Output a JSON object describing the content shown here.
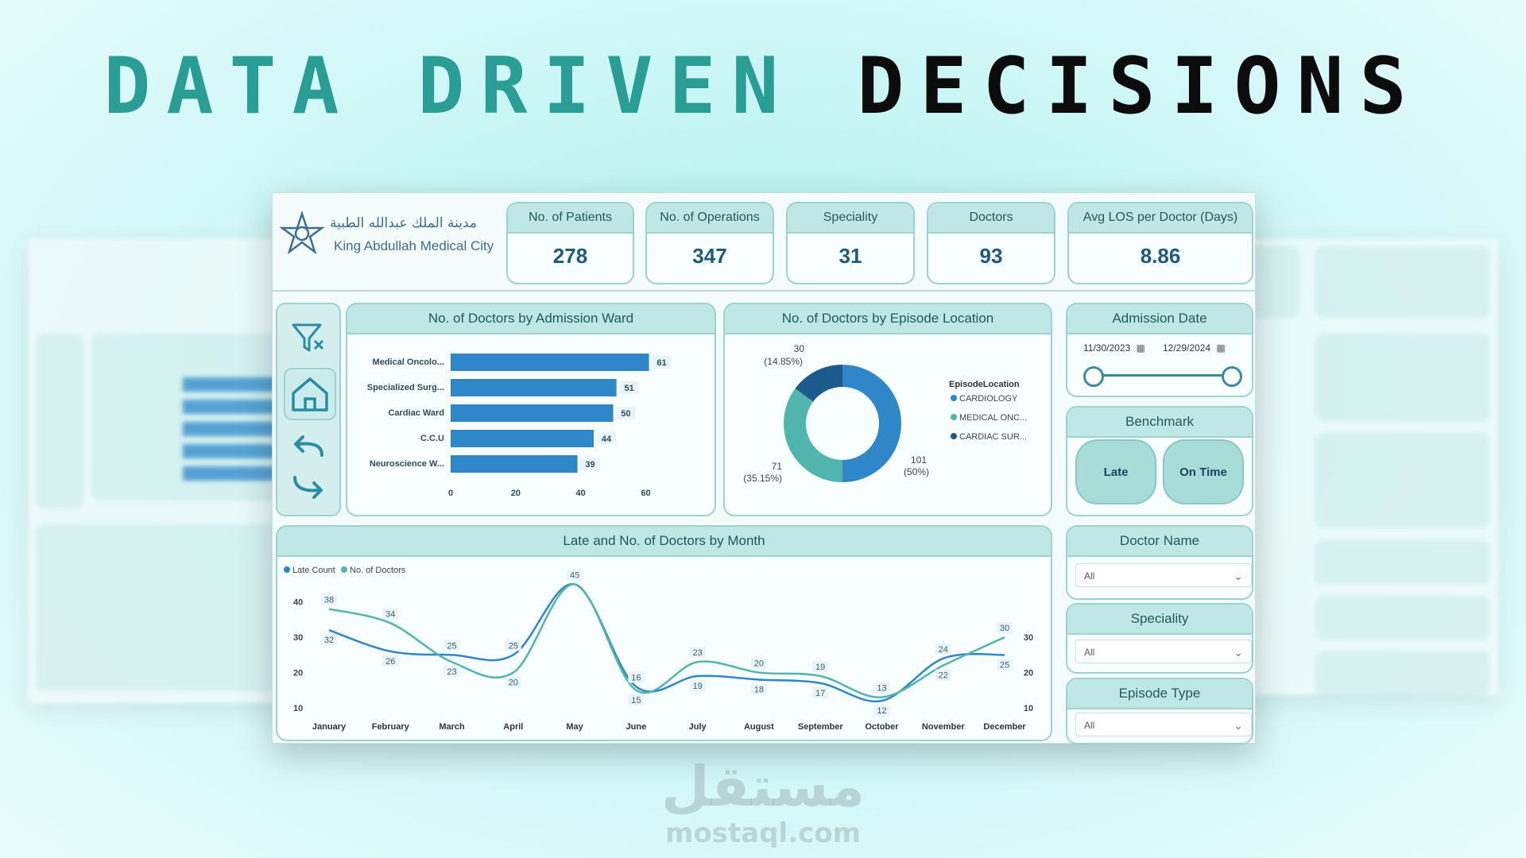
{
  "headline": {
    "part1": "DATA DRIVEN",
    "part2": "DECISIONS"
  },
  "logo": {
    "arabic": "مدينة الملك عبدالله الطبية",
    "english": "King Abdullah Medical City"
  },
  "kpis": [
    {
      "label": "No. of Patients",
      "value": "278"
    },
    {
      "label": "No. of Operations",
      "value": "347"
    },
    {
      "label": "Speciality",
      "value": "31"
    },
    {
      "label": "Doctors",
      "value": "93"
    },
    {
      "label": "Avg LOS per Doctor (Days)",
      "value": "8.86"
    }
  ],
  "nav": {
    "icons": [
      "filter-clear-icon",
      "home-icon",
      "undo-icon",
      "redo-icon"
    ]
  },
  "ward_chart_title": "No. of Doctors by Admission Ward",
  "location_chart_title": "No. of Doctors by Episode Location",
  "month_chart_title": "Late and No. of Doctors by Month",
  "admission_date": {
    "title": "Admission Date",
    "start": "11/30/2023",
    "end": "12/29/2024"
  },
  "benchmark": {
    "title": "Benchmark",
    "late": "Late",
    "on_time": "On Time"
  },
  "doctor_name": {
    "title": "Doctor Name",
    "value": "All"
  },
  "speciality_filter": {
    "title": "Speciality",
    "value": "All"
  },
  "episode_type": {
    "title": "Episode Type",
    "value": "All"
  },
  "watermark": {
    "arabic": "مستقل",
    "english": "mostaql.com"
  },
  "colors": {
    "accent": "#2a9d94",
    "bar": "#2f86c9",
    "header": "#bfe7e5",
    "border": "#9cd3d1"
  },
  "chart_data": [
    {
      "type": "bar",
      "orientation": "horizontal",
      "categories": [
        "Medical Oncolo...",
        "Specialized Surg...",
        "Cardiac Ward",
        "C.C.U",
        "Neuroscience W..."
      ],
      "values": [
        61,
        51,
        50,
        44,
        39
      ],
      "xticks": [
        "0",
        "20",
        "40",
        "60"
      ],
      "xlim": [
        0,
        66
      ]
    },
    {
      "type": "pie",
      "legend_title": "EpisodeLocation",
      "labels": [
        "CARDIOLOGY",
        "MEDICAL ONC...",
        "CARDIAC SUR..."
      ],
      "values": [
        101,
        71,
        30
      ],
      "percents": [
        "(50%)",
        "(35.15%)",
        "(14.85%)"
      ],
      "colors": [
        "#2f86c9",
        "#4fb5ad",
        "#1b5a8c"
      ]
    },
    {
      "type": "line",
      "categories": [
        "January",
        "February",
        "March",
        "April",
        "May",
        "June",
        "July",
        "August",
        "September",
        "October",
        "November",
        "December"
      ],
      "series": [
        {
          "name": "Late Count",
          "values": [
            32,
            26,
            25,
            25,
            45,
            16,
            19,
            18,
            17,
            12,
            24,
            25
          ],
          "color": "#2f86c9"
        },
        {
          "name": "No. of Doctors",
          "values": [
            38,
            34,
            23,
            20,
            45,
            15,
            23,
            20,
            19,
            13,
            22,
            30
          ],
          "color": "#4fb5ad"
        }
      ],
      "yticks_left": [
        "10",
        "20",
        "30",
        "40"
      ],
      "yticks_right": [
        "10",
        "20",
        "30"
      ],
      "ylim": [
        10,
        46
      ]
    }
  ]
}
